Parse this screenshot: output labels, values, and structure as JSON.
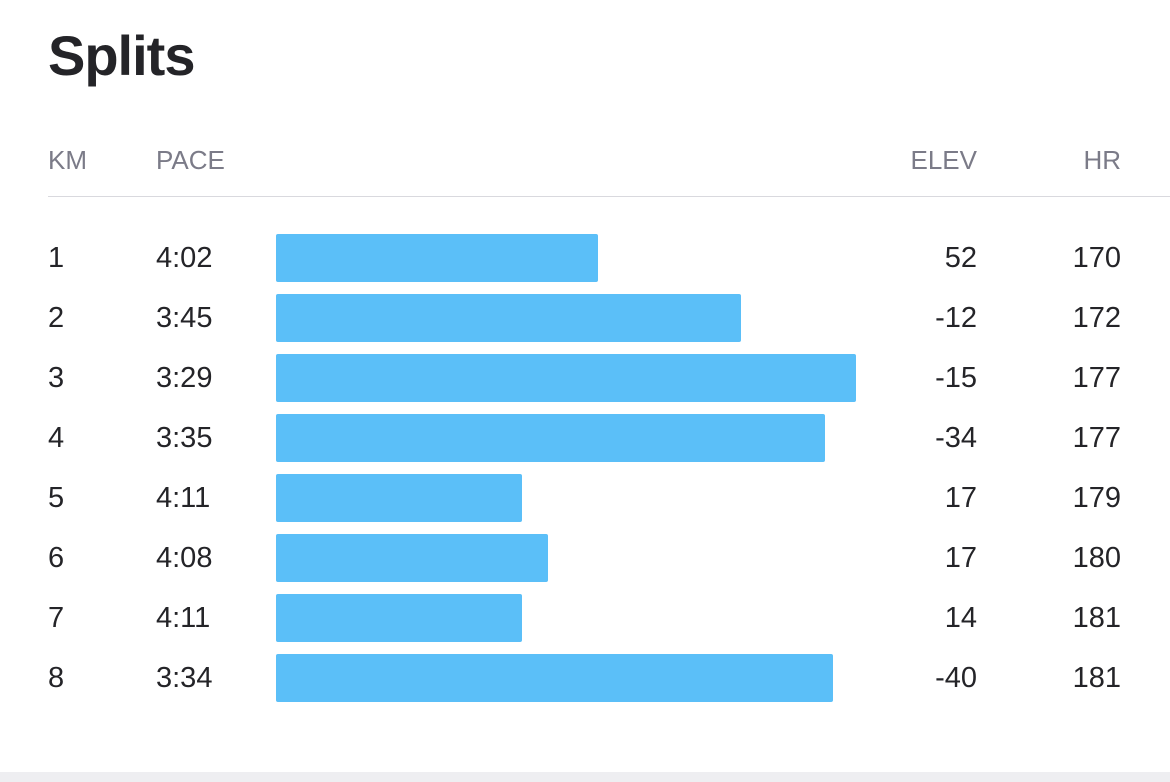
{
  "title": "Splits",
  "columns": {
    "km": "KM",
    "pace": "PACE",
    "elev": "ELEV",
    "hr": "HR"
  },
  "splits": [
    {
      "km": "1",
      "pace": "4:02",
      "elev": "52",
      "hr": "170",
      "pace_seconds": 242
    },
    {
      "km": "2",
      "pace": "3:45",
      "elev": "-12",
      "hr": "172",
      "pace_seconds": 225
    },
    {
      "km": "3",
      "pace": "3:29",
      "elev": "-15",
      "hr": "177",
      "pace_seconds": 209
    },
    {
      "km": "4",
      "pace": "3:35",
      "elev": "-34",
      "hr": "177",
      "pace_seconds": 215
    },
    {
      "km": "5",
      "pace": "4:11",
      "elev": "17",
      "hr": "179",
      "pace_seconds": 251
    },
    {
      "km": "6",
      "pace": "4:08",
      "elev": "17",
      "hr": "180",
      "pace_seconds": 248
    },
    {
      "km": "7",
      "pace": "4:11",
      "elev": "14",
      "hr": "181",
      "pace_seconds": 251
    },
    {
      "km": "8",
      "pace": "3:34",
      "elev": "-40",
      "hr": "181",
      "pace_seconds": 214
    }
  ],
  "colors": {
    "bar": "#5bbff8",
    "text": "#242428",
    "header_text": "#7b7b88",
    "divider": "#d9d9de"
  }
}
